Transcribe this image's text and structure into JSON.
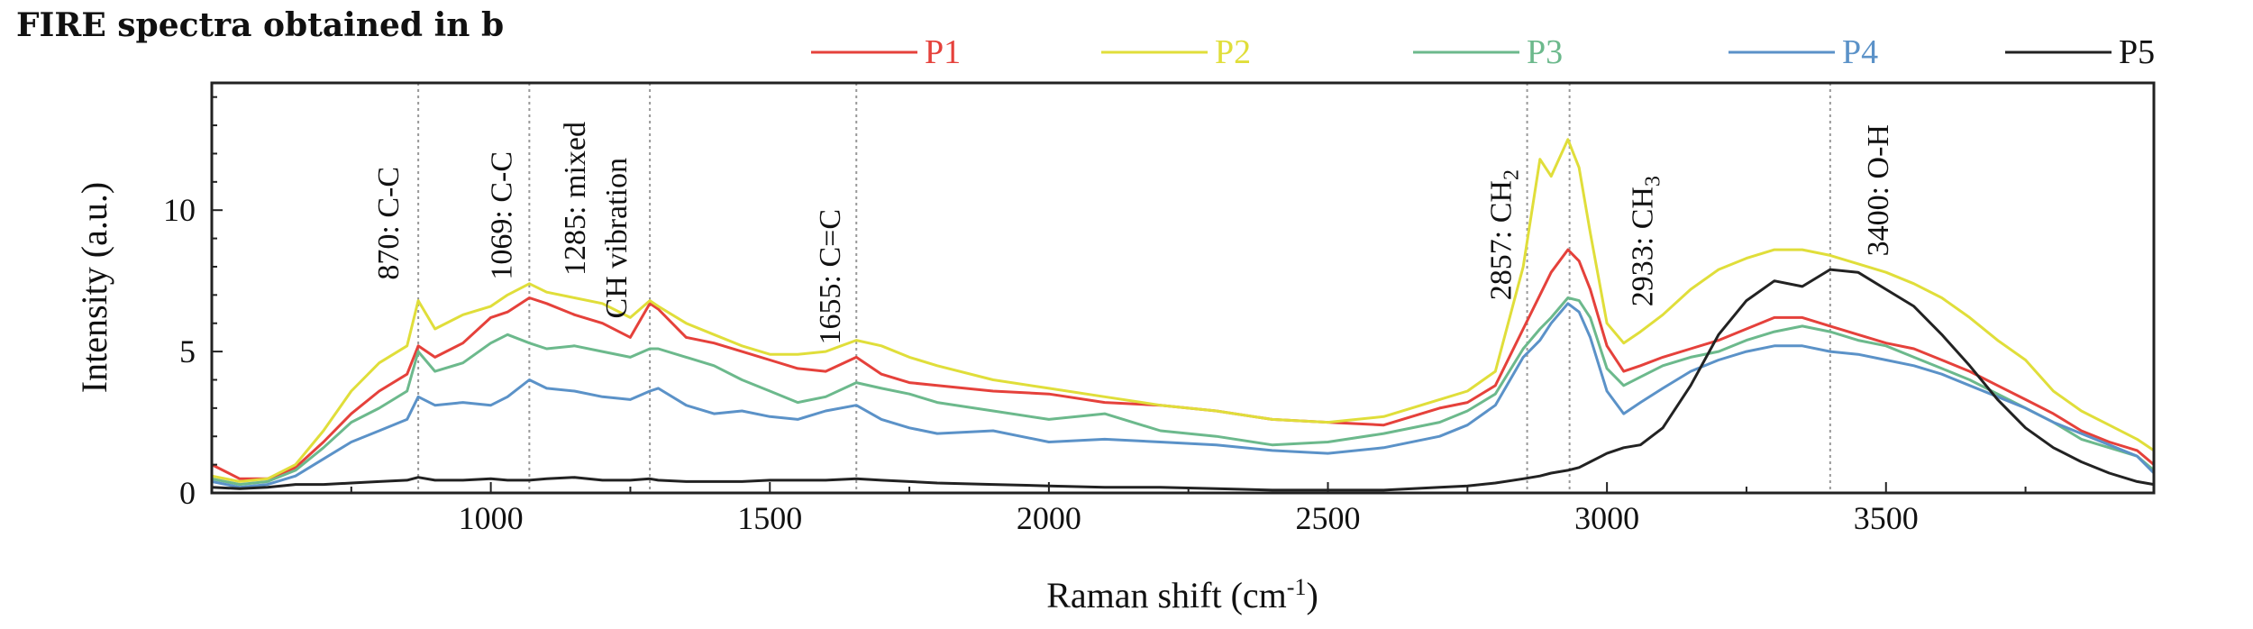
{
  "chart_data": {
    "type": "line",
    "title": "FIRE spectra obtained in b",
    "xlabel_main": "Raman shift (cm",
    "xlabel_sup": "-1",
    "xlabel_end": ")",
    "ylabel": "Intensity (a.u.)",
    "xlim": [
      500,
      3980
    ],
    "ylim": [
      0,
      14.5
    ],
    "x_ticks": [
      1000,
      1500,
      2000,
      2500,
      3000,
      3500
    ],
    "y_ticks": [
      0,
      5,
      10
    ],
    "grid": false,
    "legend_position": "top",
    "x": [
      500,
      550,
      600,
      650,
      700,
      750,
      800,
      850,
      870,
      900,
      950,
      1000,
      1030,
      1069,
      1100,
      1150,
      1200,
      1250,
      1285,
      1300,
      1350,
      1400,
      1450,
      1500,
      1550,
      1600,
      1655,
      1700,
      1750,
      1800,
      1900,
      2000,
      2100,
      2200,
      2300,
      2400,
      2500,
      2600,
      2700,
      2750,
      2800,
      2850,
      2880,
      2900,
      2930,
      2950,
      2970,
      3000,
      3030,
      3060,
      3100,
      3150,
      3200,
      3250,
      3300,
      3350,
      3400,
      3450,
      3500,
      3550,
      3600,
      3650,
      3700,
      3750,
      3800,
      3850,
      3900,
      3950,
      3980
    ],
    "series": [
      {
        "name": "P1",
        "color": "#e5413b",
        "values": [
          1.0,
          0.5,
          0.5,
          0.9,
          1.8,
          2.8,
          3.6,
          4.2,
          5.2,
          4.8,
          5.3,
          6.2,
          6.4,
          6.9,
          6.7,
          6.3,
          6.0,
          5.5,
          6.7,
          6.5,
          5.5,
          5.3,
          5.0,
          4.7,
          4.4,
          4.3,
          4.8,
          4.2,
          3.9,
          3.8,
          3.6,
          3.5,
          3.2,
          3.1,
          2.9,
          2.6,
          2.5,
          2.4,
          3.0,
          3.2,
          3.8,
          5.8,
          7.0,
          7.8,
          8.6,
          8.2,
          7.2,
          5.2,
          4.3,
          4.5,
          4.8,
          5.1,
          5.4,
          5.8,
          6.2,
          6.2,
          5.9,
          5.6,
          5.3,
          5.1,
          4.7,
          4.3,
          3.8,
          3.3,
          2.8,
          2.2,
          1.8,
          1.5,
          1.0
        ]
      },
      {
        "name": "P2",
        "color": "#e0de3a",
        "values": [
          0.6,
          0.4,
          0.5,
          1.0,
          2.2,
          3.6,
          4.6,
          5.2,
          6.8,
          5.8,
          6.3,
          6.6,
          7.0,
          7.4,
          7.1,
          6.9,
          6.7,
          6.2,
          6.8,
          6.6,
          6.0,
          5.6,
          5.2,
          4.9,
          4.9,
          5.0,
          5.4,
          5.2,
          4.8,
          4.5,
          4.0,
          3.7,
          3.4,
          3.1,
          2.9,
          2.6,
          2.5,
          2.7,
          3.3,
          3.6,
          4.3,
          8.0,
          11.8,
          11.2,
          12.5,
          11.5,
          9.2,
          6.0,
          5.3,
          5.7,
          6.3,
          7.2,
          7.9,
          8.3,
          8.6,
          8.6,
          8.4,
          8.1,
          7.8,
          7.4,
          6.9,
          6.2,
          5.4,
          4.7,
          3.6,
          2.9,
          2.4,
          1.9,
          1.5
        ]
      },
      {
        "name": "P3",
        "color": "#6cb98c",
        "values": [
          0.5,
          0.3,
          0.4,
          0.8,
          1.6,
          2.5,
          3.0,
          3.6,
          5.0,
          4.3,
          4.6,
          5.3,
          5.6,
          5.3,
          5.1,
          5.2,
          5.0,
          4.8,
          5.1,
          5.1,
          4.8,
          4.5,
          4.0,
          3.6,
          3.2,
          3.4,
          3.9,
          3.7,
          3.5,
          3.2,
          2.9,
          2.6,
          2.8,
          2.2,
          2.0,
          1.7,
          1.8,
          2.1,
          2.5,
          2.9,
          3.5,
          5.1,
          5.8,
          6.2,
          6.9,
          6.8,
          6.2,
          4.4,
          3.8,
          4.1,
          4.5,
          4.8,
          5.0,
          5.4,
          5.7,
          5.9,
          5.7,
          5.4,
          5.2,
          4.8,
          4.4,
          4.0,
          3.5,
          3.0,
          2.5,
          1.9,
          1.6,
          1.3,
          0.8
        ]
      },
      {
        "name": "P4",
        "color": "#5b92c8",
        "values": [
          0.4,
          0.2,
          0.3,
          0.6,
          1.2,
          1.8,
          2.2,
          2.6,
          3.4,
          3.1,
          3.2,
          3.1,
          3.4,
          4.0,
          3.7,
          3.6,
          3.4,
          3.3,
          3.6,
          3.7,
          3.1,
          2.8,
          2.9,
          2.7,
          2.6,
          2.9,
          3.1,
          2.6,
          2.3,
          2.1,
          2.2,
          1.8,
          1.9,
          1.8,
          1.7,
          1.5,
          1.4,
          1.6,
          2.0,
          2.4,
          3.1,
          4.8,
          5.4,
          6.0,
          6.7,
          6.4,
          5.5,
          3.6,
          2.8,
          3.2,
          3.7,
          4.3,
          4.7,
          5.0,
          5.2,
          5.2,
          5.0,
          4.9,
          4.7,
          4.5,
          4.2,
          3.8,
          3.4,
          3.0,
          2.5,
          2.1,
          1.7,
          1.3,
          0.7
        ]
      },
      {
        "name": "P5",
        "color": "#222222",
        "values": [
          0.2,
          0.15,
          0.2,
          0.3,
          0.3,
          0.35,
          0.4,
          0.45,
          0.55,
          0.45,
          0.45,
          0.5,
          0.45,
          0.45,
          0.5,
          0.55,
          0.45,
          0.45,
          0.5,
          0.45,
          0.4,
          0.4,
          0.4,
          0.45,
          0.45,
          0.45,
          0.5,
          0.45,
          0.4,
          0.35,
          0.3,
          0.25,
          0.2,
          0.2,
          0.15,
          0.1,
          0.1,
          0.1,
          0.2,
          0.25,
          0.35,
          0.5,
          0.6,
          0.7,
          0.8,
          0.9,
          1.1,
          1.4,
          1.6,
          1.7,
          2.3,
          3.8,
          5.6,
          6.8,
          7.5,
          7.3,
          7.9,
          7.8,
          7.2,
          6.6,
          5.6,
          4.5,
          3.3,
          2.3,
          1.6,
          1.1,
          0.7,
          0.4,
          0.3
        ]
      }
    ],
    "annotations": [
      {
        "x": 870,
        "label": "870: C-C"
      },
      {
        "x": 1069,
        "label": "1069: C-C"
      },
      {
        "x": 1285,
        "label": "1285: mixed",
        "label2": "CH vibration"
      },
      {
        "x": 1655,
        "label": "1655: C=C"
      },
      {
        "x": 2857,
        "label": "2857: CH",
        "sub": "2"
      },
      {
        "x": 2933,
        "label": "2933: CH",
        "sub": "3"
      },
      {
        "x": 3400,
        "label": "3400: O-H"
      }
    ]
  }
}
